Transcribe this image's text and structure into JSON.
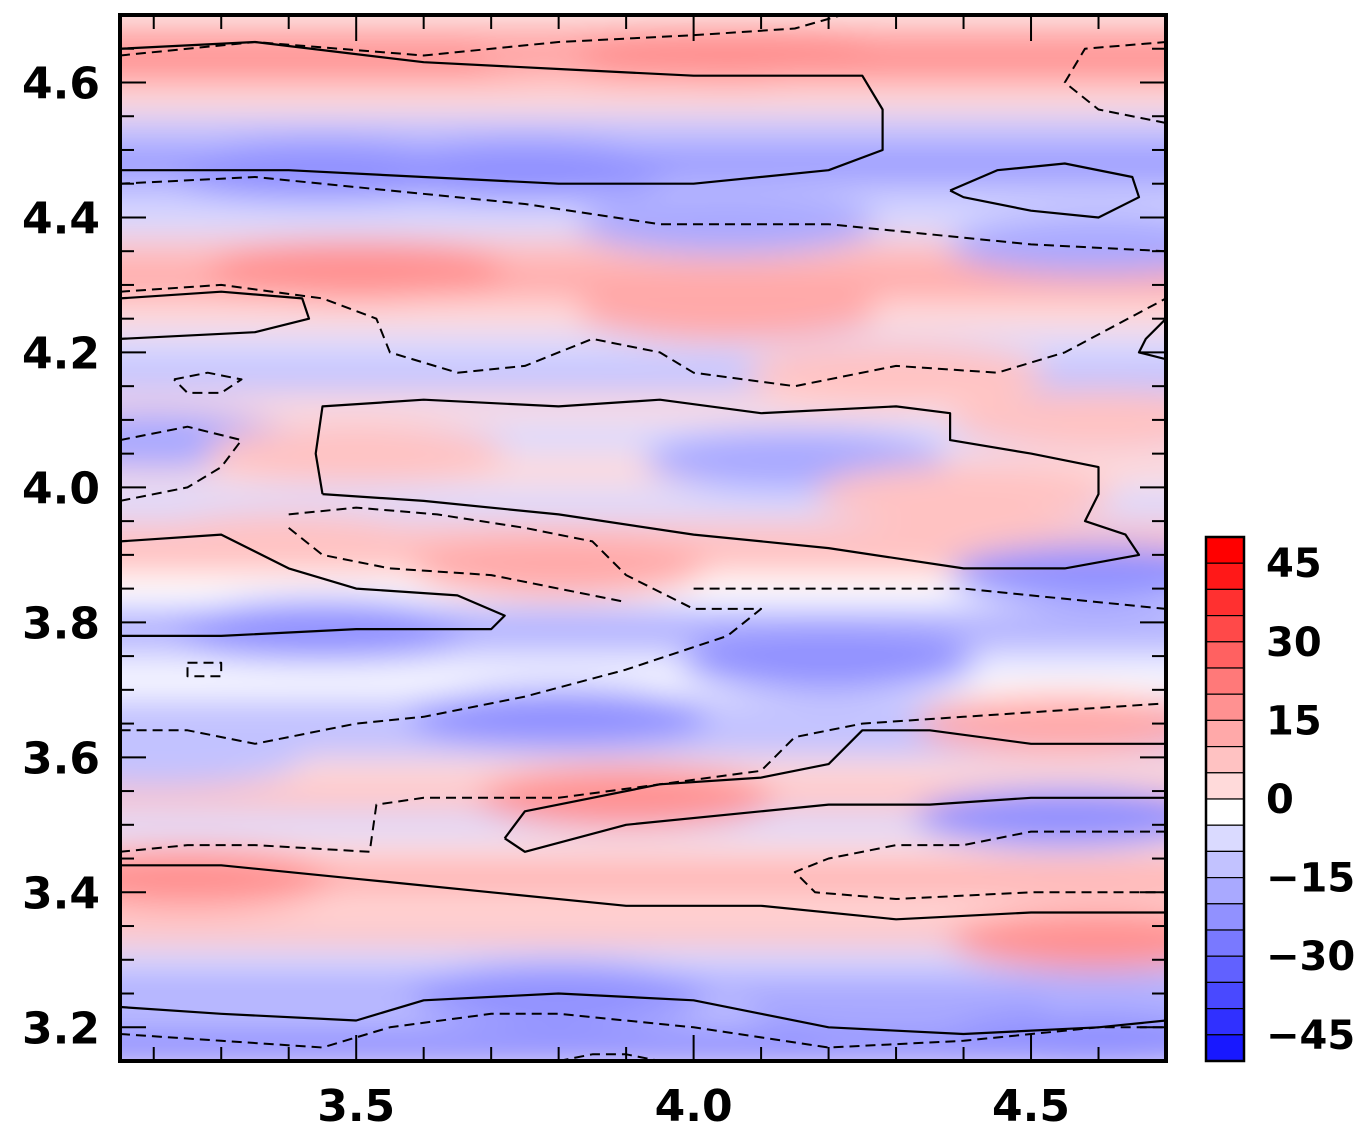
{
  "chart_data": {
    "type": "heatmap",
    "title": "",
    "xlabel": "",
    "ylabel": "",
    "xlim": [
      3.15,
      4.7
    ],
    "ylim": [
      3.15,
      4.7
    ],
    "x_ticks": [
      {
        "value": 3.5,
        "label": "3.5"
      },
      {
        "value": 4.0,
        "label": "4.0"
      },
      {
        "value": 4.5,
        "label": "4.5"
      }
    ],
    "y_ticks": [
      {
        "value": 3.2,
        "label": "3.2"
      },
      {
        "value": 3.4,
        "label": "3.4"
      },
      {
        "value": 3.6,
        "label": "3.6"
      },
      {
        "value": 3.8,
        "label": "3.8"
      },
      {
        "value": 4.0,
        "label": "4.0"
      },
      {
        "value": 4.2,
        "label": "4.2"
      },
      {
        "value": 4.4,
        "label": "4.4"
      },
      {
        "value": 4.6,
        "label": "4.6"
      }
    ],
    "colorbar": {
      "min": -50,
      "max": 50,
      "step": 5,
      "labels": [
        {
          "value": 45,
          "label": "45"
        },
        {
          "value": 30,
          "label": "30"
        },
        {
          "value": 15,
          "label": "15"
        },
        {
          "value": 0,
          "label": "0"
        },
        {
          "value": -15,
          "label": "−15"
        },
        {
          "value": -30,
          "label": "−30"
        },
        {
          "value": -45,
          "label": "−45"
        }
      ],
      "color_negative": "#0000ff",
      "color_positive": "#ff0000",
      "color_zero": "#ffffff"
    },
    "field_bands": [
      {
        "y": 4.66,
        "value": 14
      },
      {
        "y": 4.62,
        "value": 18
      },
      {
        "y": 4.57,
        "value": 4
      },
      {
        "y": 4.52,
        "value": -10
      },
      {
        "y": 4.47,
        "value": -20
      },
      {
        "y": 4.43,
        "value": -12
      },
      {
        "y": 4.39,
        "value": -6
      },
      {
        "y": 4.34,
        "value": 8
      },
      {
        "y": 4.3,
        "value": 16
      },
      {
        "y": 4.25,
        "value": 6
      },
      {
        "y": 4.2,
        "value": -4
      },
      {
        "y": 4.16,
        "value": -8
      },
      {
        "y": 4.11,
        "value": 4
      },
      {
        "y": 4.07,
        "value": -4
      },
      {
        "y": 4.02,
        "value": 6
      },
      {
        "y": 3.97,
        "value": -4
      },
      {
        "y": 3.92,
        "value": 10
      },
      {
        "y": 3.88,
        "value": 8
      },
      {
        "y": 3.84,
        "value": 2
      },
      {
        "y": 3.79,
        "value": -14
      },
      {
        "y": 3.74,
        "value": -4
      },
      {
        "y": 3.7,
        "value": 2
      },
      {
        "y": 3.66,
        "value": -10
      },
      {
        "y": 3.61,
        "value": -8
      },
      {
        "y": 3.57,
        "value": 4
      },
      {
        "y": 3.53,
        "value": 10
      },
      {
        "y": 3.49,
        "value": -6
      },
      {
        "y": 3.45,
        "value": 4
      },
      {
        "y": 3.41,
        "value": 14
      },
      {
        "y": 3.37,
        "value": 6
      },
      {
        "y": 3.33,
        "value": 10
      },
      {
        "y": 3.29,
        "value": -4
      },
      {
        "y": 3.25,
        "value": -14
      },
      {
        "y": 3.21,
        "value": -10
      },
      {
        "y": 3.17,
        "value": -20
      }
    ],
    "field_blobs": [
      {
        "x": 3.9,
        "y": 4.64,
        "value": 14
      },
      {
        "x": 4.05,
        "y": 4.64,
        "value": 18
      },
      {
        "x": 3.45,
        "y": 4.47,
        "value": -20
      },
      {
        "x": 3.75,
        "y": 4.47,
        "value": -22
      },
      {
        "x": 4.05,
        "y": 4.39,
        "value": -16
      },
      {
        "x": 4.6,
        "y": 4.36,
        "value": -14
      },
      {
        "x": 3.5,
        "y": 4.32,
        "value": 20
      },
      {
        "x": 4.05,
        "y": 4.26,
        "value": 14
      },
      {
        "x": 4.3,
        "y": 4.17,
        "value": 12
      },
      {
        "x": 3.2,
        "y": 4.07,
        "value": -14
      },
      {
        "x": 3.5,
        "y": 4.05,
        "value": 12
      },
      {
        "x": 4.15,
        "y": 4.04,
        "value": -14
      },
      {
        "x": 4.4,
        "y": 3.99,
        "value": 12
      },
      {
        "x": 4.6,
        "y": 4.1,
        "value": 10
      },
      {
        "x": 3.4,
        "y": 3.92,
        "value": 12
      },
      {
        "x": 3.8,
        "y": 3.88,
        "value": 14
      },
      {
        "x": 4.6,
        "y": 3.87,
        "value": -18
      },
      {
        "x": 3.45,
        "y": 3.79,
        "value": -22
      },
      {
        "x": 4.2,
        "y": 3.74,
        "value": -18
      },
      {
        "x": 3.8,
        "y": 3.66,
        "value": -18
      },
      {
        "x": 3.2,
        "y": 3.6,
        "value": -12
      },
      {
        "x": 4.55,
        "y": 3.65,
        "value": 14
      },
      {
        "x": 3.9,
        "y": 3.54,
        "value": 18
      },
      {
        "x": 4.55,
        "y": 3.51,
        "value": -18
      },
      {
        "x": 3.25,
        "y": 3.42,
        "value": 18
      },
      {
        "x": 4.6,
        "y": 3.33,
        "value": 18
      },
      {
        "x": 3.8,
        "y": 3.25,
        "value": -22
      },
      {
        "x": 4.3,
        "y": 3.23,
        "value": -14
      },
      {
        "x": 4.6,
        "y": 3.18,
        "value": -20
      }
    ],
    "solid_contours": [
      [
        [
          3.15,
          4.65
        ],
        [
          3.35,
          4.66
        ],
        [
          3.6,
          4.63
        ],
        [
          3.8,
          4.62
        ],
        [
          4.0,
          4.61
        ],
        [
          4.25,
          4.61
        ],
        [
          4.28,
          4.56
        ],
        [
          4.28,
          4.5
        ],
        [
          4.2,
          4.47
        ],
        [
          4.0,
          4.45
        ],
        [
          3.8,
          4.45
        ],
        [
          3.6,
          4.46
        ],
        [
          3.4,
          4.47
        ],
        [
          3.15,
          4.47
        ]
      ],
      [
        [
          4.38,
          4.44
        ],
        [
          4.45,
          4.47
        ],
        [
          4.55,
          4.48
        ],
        [
          4.65,
          4.46
        ],
        [
          4.66,
          4.43
        ],
        [
          4.6,
          4.4
        ],
        [
          4.5,
          4.41
        ],
        [
          4.4,
          4.43
        ],
        [
          4.38,
          4.44
        ]
      ],
      [
        [
          3.15,
          4.28
        ],
        [
          3.3,
          4.29
        ],
        [
          3.42,
          4.28
        ],
        [
          3.43,
          4.25
        ],
        [
          3.35,
          4.23
        ],
        [
          3.15,
          4.22
        ]
      ],
      [
        [
          4.7,
          4.25
        ],
        [
          4.67,
          4.22
        ],
        [
          4.66,
          4.2
        ],
        [
          4.7,
          4.19
        ]
      ],
      [
        [
          3.45,
          3.99
        ],
        [
          3.6,
          3.98
        ],
        [
          3.8,
          3.96
        ],
        [
          4.0,
          3.93
        ],
        [
          4.2,
          3.91
        ],
        [
          4.4,
          3.88
        ],
        [
          4.55,
          3.88
        ],
        [
          4.66,
          3.9
        ],
        [
          4.64,
          3.93
        ],
        [
          4.58,
          3.95
        ],
        [
          4.6,
          3.99
        ],
        [
          4.6,
          4.03
        ],
        [
          4.5,
          4.05
        ],
        [
          4.38,
          4.07
        ],
        [
          4.38,
          4.11
        ],
        [
          4.3,
          4.12
        ],
        [
          4.1,
          4.11
        ],
        [
          3.95,
          4.13
        ],
        [
          3.8,
          4.12
        ],
        [
          3.6,
          4.13
        ],
        [
          3.45,
          4.12
        ],
        [
          3.44,
          4.05
        ],
        [
          3.45,
          3.99
        ]
      ],
      [
        [
          3.15,
          3.92
        ],
        [
          3.3,
          3.93
        ],
        [
          3.4,
          3.88
        ],
        [
          3.5,
          3.85
        ],
        [
          3.65,
          3.84
        ],
        [
          3.72,
          3.81
        ],
        [
          3.7,
          3.79
        ],
        [
          3.5,
          3.79
        ],
        [
          3.3,
          3.78
        ],
        [
          3.15,
          3.78
        ]
      ],
      [
        [
          3.15,
          3.44
        ],
        [
          3.3,
          3.44
        ],
        [
          3.5,
          3.42
        ],
        [
          3.7,
          3.4
        ],
        [
          3.9,
          3.38
        ],
        [
          4.1,
          3.38
        ],
        [
          4.3,
          3.36
        ],
        [
          4.5,
          3.37
        ],
        [
          4.7,
          3.37
        ]
      ],
      [
        [
          3.72,
          3.48
        ],
        [
          3.75,
          3.46
        ],
        [
          3.9,
          3.5
        ],
        [
          4.1,
          3.52
        ],
        [
          4.2,
          3.53
        ],
        [
          4.35,
          3.53
        ],
        [
          4.5,
          3.54
        ],
        [
          4.7,
          3.54
        ]
      ],
      [
        [
          4.7,
          3.62
        ],
        [
          4.5,
          3.62
        ],
        [
          4.35,
          3.64
        ],
        [
          4.25,
          3.64
        ],
        [
          4.2,
          3.59
        ],
        [
          4.1,
          3.57
        ],
        [
          3.95,
          3.56
        ],
        [
          3.75,
          3.52
        ],
        [
          3.72,
          3.48
        ]
      ],
      [
        [
          3.15,
          3.23
        ],
        [
          3.3,
          3.22
        ],
        [
          3.5,
          3.21
        ],
        [
          3.6,
          3.24
        ],
        [
          3.8,
          3.25
        ],
        [
          4.0,
          3.24
        ],
        [
          4.1,
          3.22
        ],
        [
          4.2,
          3.2
        ],
        [
          4.4,
          3.19
        ],
        [
          4.6,
          3.2
        ],
        [
          4.7,
          3.21
        ]
      ]
    ],
    "dashed_contours": [
      [
        [
          3.15,
          4.64
        ],
        [
          3.35,
          4.66
        ],
        [
          3.6,
          4.64
        ],
        [
          3.8,
          4.66
        ],
        [
          4.0,
          4.67
        ],
        [
          4.15,
          4.68
        ],
        [
          4.22,
          4.7
        ]
      ],
      [
        [
          4.7,
          4.54
        ],
        [
          4.6,
          4.56
        ],
        [
          4.55,
          4.6
        ],
        [
          4.58,
          4.65
        ],
        [
          4.7,
          4.66
        ]
      ],
      [
        [
          3.15,
          4.45
        ],
        [
          3.35,
          4.46
        ],
        [
          3.55,
          4.44
        ],
        [
          3.75,
          4.42
        ],
        [
          3.95,
          4.39
        ],
        [
          4.2,
          4.39
        ],
        [
          4.5,
          4.36
        ],
        [
          4.7,
          4.35
        ]
      ],
      [
        [
          3.15,
          4.29
        ],
        [
          3.3,
          4.3
        ],
        [
          3.45,
          4.28
        ],
        [
          3.53,
          4.25
        ],
        [
          3.55,
          4.2
        ],
        [
          3.65,
          4.17
        ],
        [
          3.75,
          4.18
        ],
        [
          3.85,
          4.22
        ],
        [
          3.95,
          4.2
        ],
        [
          4.0,
          4.17
        ],
        [
          4.15,
          4.15
        ],
        [
          4.3,
          4.18
        ],
        [
          4.45,
          4.17
        ],
        [
          4.55,
          4.2
        ],
        [
          4.7,
          4.28
        ]
      ],
      [
        [
          3.23,
          4.16
        ],
        [
          3.28,
          4.17
        ],
        [
          3.33,
          4.16
        ],
        [
          3.3,
          4.14
        ],
        [
          3.25,
          4.14
        ],
        [
          3.23,
          4.16
        ]
      ],
      [
        [
          3.15,
          4.07
        ],
        [
          3.25,
          4.09
        ],
        [
          3.33,
          4.07
        ],
        [
          3.3,
          4.03
        ],
        [
          3.25,
          4.0
        ],
        [
          3.15,
          3.98
        ]
      ],
      [
        [
          3.4,
          3.96
        ],
        [
          3.5,
          3.97
        ],
        [
          3.62,
          3.96
        ],
        [
          3.75,
          3.94
        ],
        [
          3.85,
          3.92
        ],
        [
          3.9,
          3.87
        ],
        [
          4.0,
          3.82
        ],
        [
          4.1,
          3.82
        ],
        [
          4.05,
          3.78
        ],
        [
          3.9,
          3.73
        ],
        [
          3.75,
          3.69
        ],
        [
          3.6,
          3.66
        ],
        [
          3.5,
          3.65
        ],
        [
          3.35,
          3.62
        ],
        [
          3.25,
          3.64
        ],
        [
          3.15,
          3.64
        ]
      ],
      [
        [
          3.25,
          3.74
        ],
        [
          3.3,
          3.74
        ],
        [
          3.3,
          3.72
        ],
        [
          3.25,
          3.72
        ],
        [
          3.25,
          3.74
        ]
      ],
      [
        [
          3.4,
          3.94
        ],
        [
          3.45,
          3.9
        ],
        [
          3.55,
          3.88
        ],
        [
          3.7,
          3.87
        ],
        [
          3.8,
          3.85
        ],
        [
          3.9,
          3.83
        ]
      ],
      [
        [
          4.0,
          3.85
        ],
        [
          4.2,
          3.85
        ],
        [
          4.4,
          3.85
        ],
        [
          4.5,
          3.84
        ],
        [
          4.7,
          3.82
        ]
      ],
      [
        [
          3.15,
          3.46
        ],
        [
          3.25,
          3.47
        ],
        [
          3.35,
          3.47
        ],
        [
          3.52,
          3.46
        ],
        [
          3.53,
          3.53
        ],
        [
          3.6,
          3.54
        ],
        [
          3.8,
          3.54
        ],
        [
          3.95,
          3.56
        ],
        [
          4.1,
          3.58
        ],
        [
          4.15,
          3.63
        ],
        [
          4.25,
          3.65
        ],
        [
          4.4,
          3.66
        ],
        [
          4.55,
          3.67
        ],
        [
          4.7,
          3.68
        ]
      ],
      [
        [
          4.7,
          3.49
        ],
        [
          4.5,
          3.49
        ],
        [
          4.4,
          3.47
        ],
        [
          4.3,
          3.47
        ],
        [
          4.2,
          3.45
        ],
        [
          4.15,
          3.43
        ],
        [
          4.18,
          3.4
        ],
        [
          4.3,
          3.39
        ],
        [
          4.5,
          3.4
        ],
        [
          4.7,
          3.4
        ]
      ],
      [
        [
          3.15,
          3.19
        ],
        [
          3.3,
          3.18
        ],
        [
          3.45,
          3.17
        ],
        [
          3.55,
          3.2
        ],
        [
          3.7,
          3.22
        ],
        [
          3.8,
          3.22
        ],
        [
          4.0,
          3.2
        ],
        [
          4.2,
          3.17
        ],
        [
          4.4,
          3.18
        ],
        [
          4.6,
          3.2
        ],
        [
          4.7,
          3.2
        ]
      ],
      [
        [
          3.8,
          3.15
        ],
        [
          3.85,
          3.16
        ],
        [
          3.9,
          3.16
        ],
        [
          3.95,
          3.15
        ]
      ]
    ]
  }
}
